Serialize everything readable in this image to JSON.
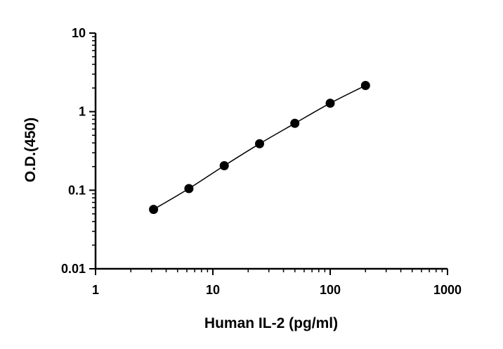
{
  "chart_data": {
    "type": "scatter",
    "title": "",
    "xlabel": "Human IL-2 (pg/ml)",
    "ylabel": "O.D.(450)",
    "xscale": "log",
    "yscale": "log",
    "xlim": [
      1,
      1000
    ],
    "ylim": [
      0.01,
      10
    ],
    "x_ticks": [
      1,
      10,
      100,
      1000
    ],
    "x_tick_labels": [
      "1",
      "10",
      "100",
      "1000"
    ],
    "y_ticks": [
      0.01,
      0.1,
      1,
      10
    ],
    "y_tick_labels": [
      "0.01",
      "0.1",
      "1",
      "10"
    ],
    "grid": false,
    "legend": "none",
    "fit_line": true,
    "marker_color": "#000000",
    "series": [
      {
        "x": [
          3.125,
          6.25,
          12.5,
          25,
          50,
          100,
          200
        ],
        "y": [
          0.057,
          0.105,
          0.205,
          0.39,
          0.71,
          1.28,
          2.15
        ]
      }
    ]
  }
}
